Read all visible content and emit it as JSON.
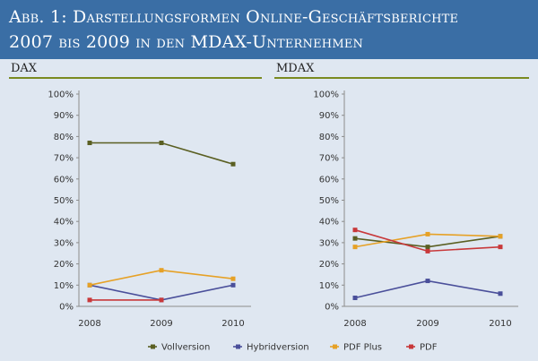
{
  "title": {
    "line1": "Abb. 1: Darstellungsformen Online-Geschäftsberichte",
    "line2": "2007 bis 2009 in den MDAX-Unternehmen"
  },
  "colors": {
    "title_band": "#3a6ea5",
    "background": "#dfe7f1",
    "rule": "#7a8a20"
  },
  "chart_data": [
    {
      "type": "line",
      "panel": "DAX",
      "categories": [
        "2008",
        "2009",
        "2010"
      ],
      "yticks": [
        "0%",
        "10%",
        "20%",
        "30%",
        "40%",
        "50%",
        "60%",
        "70%",
        "80%",
        "90%",
        "100%"
      ],
      "ylim": [
        0,
        100
      ],
      "grid": false,
      "series": [
        {
          "name": "Vollversion",
          "color": "#5a5f22",
          "values": [
            77,
            77,
            67
          ]
        },
        {
          "name": "Hybridversion",
          "color": "#4a4f9a",
          "values": [
            10,
            3,
            10
          ]
        },
        {
          "name": "PDF Plus",
          "color": "#e6a126",
          "values": [
            10,
            17,
            13
          ]
        },
        {
          "name": "PDF",
          "color": "#c8383a",
          "values": [
            3,
            3,
            null
          ]
        }
      ]
    },
    {
      "type": "line",
      "panel": "MDAX",
      "categories": [
        "2008",
        "2009",
        "2010"
      ],
      "yticks": [
        "0%",
        "10%",
        "20%",
        "30%",
        "40%",
        "50%",
        "60%",
        "70%",
        "80%",
        "90%",
        "100%"
      ],
      "ylim": [
        0,
        100
      ],
      "grid": false,
      "series": [
        {
          "name": "Vollversion",
          "color": "#5a5f22",
          "values": [
            32,
            28,
            33
          ]
        },
        {
          "name": "Hybridversion",
          "color": "#4a4f9a",
          "values": [
            4,
            12,
            6
          ]
        },
        {
          "name": "PDF Plus",
          "color": "#e6a126",
          "values": [
            28,
            34,
            33
          ]
        },
        {
          "name": "PDF",
          "color": "#c8383a",
          "values": [
            36,
            26,
            28
          ]
        }
      ]
    }
  ],
  "legend": {
    "position": "bottom-center",
    "items": [
      "Vollversion",
      "Hybridversion",
      "PDF Plus",
      "PDF"
    ]
  }
}
